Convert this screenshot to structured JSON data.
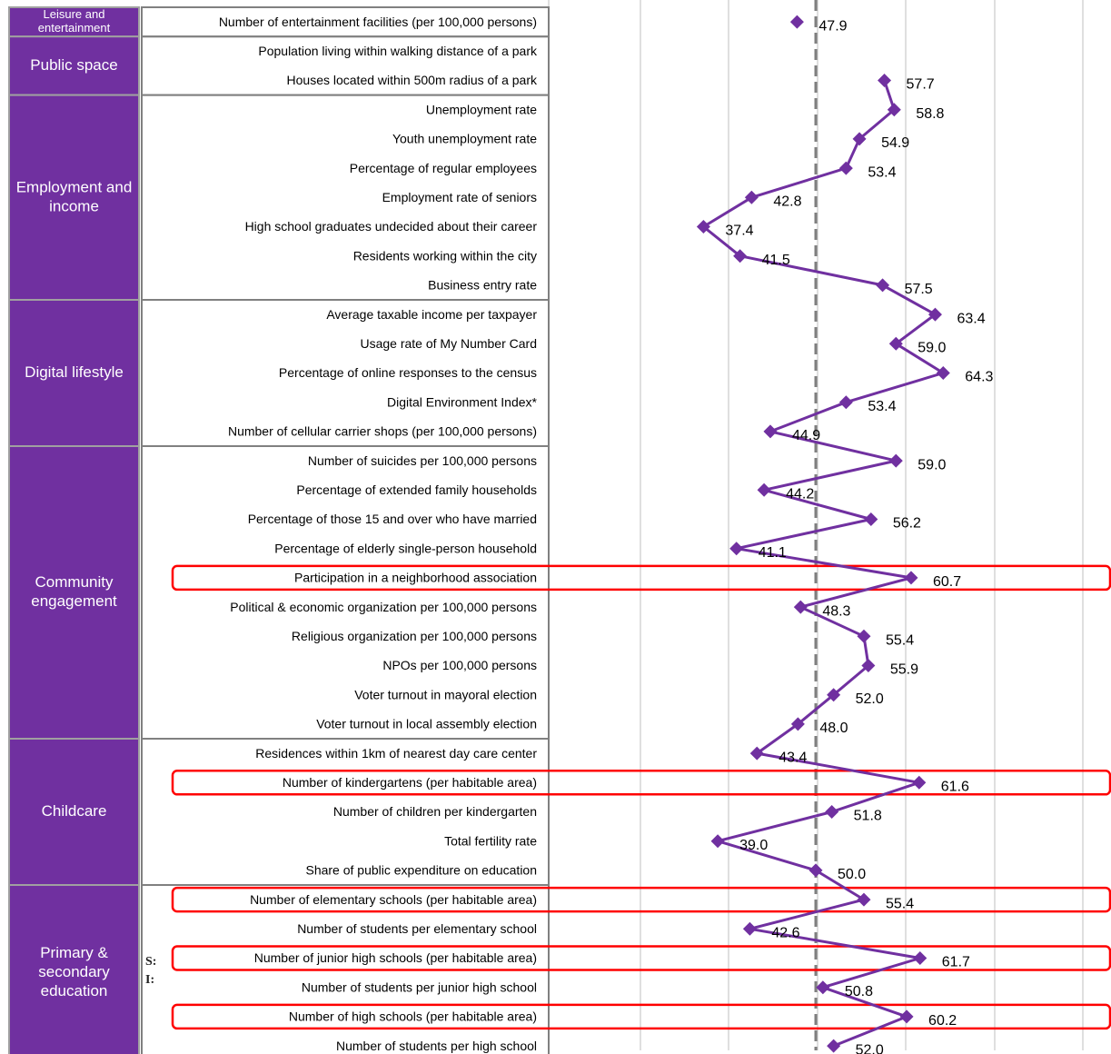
{
  "chart_data": {
    "type": "line",
    "orientation": "horizontal",
    "colors": {
      "category_fill": "#7030a0",
      "series": "#7030a0",
      "highlight": "#ff0000",
      "average_line": "#7f7f7f",
      "grid": "#bfbfbf"
    },
    "average_value": 50,
    "xlim": [
      20,
      80
    ],
    "grid": true,
    "categories": [
      {
        "name": "Leisure and entertainment",
        "lines": [
          "Leisure and",
          "entertainment"
        ],
        "rows": 1,
        "font": "small"
      },
      {
        "name": "Public space",
        "lines": [
          "Public space"
        ],
        "rows": 2,
        "font": "normal"
      },
      {
        "name": "Employment and income",
        "lines": [
          "Employment and",
          "income"
        ],
        "rows": 7,
        "font": "normal"
      },
      {
        "name": "Digital lifestyle",
        "lines": [
          "Digital lifestyle"
        ],
        "rows": 5,
        "font": "normal"
      },
      {
        "name": "Community engagement",
        "lines": [
          "Community",
          "engagement"
        ],
        "rows": 10,
        "font": "normal"
      },
      {
        "name": "Childcare",
        "lines": [
          "Childcare"
        ],
        "rows": 5,
        "font": "normal"
      },
      {
        "name": "Primary & secondary education",
        "lines": [
          "Primary &",
          "secondary",
          "education"
        ],
        "rows": 6,
        "font": "normal"
      }
    ],
    "indicators": [
      {
        "label": "Number of entertainment facilities (per 100,000 persons)",
        "value": 47.9,
        "value_text": "47.9",
        "highlight": false,
        "connected": false
      },
      {
        "label": "Population living within walking distance of a park",
        "value": null,
        "value_text": "",
        "highlight": false,
        "connected": false
      },
      {
        "label": "Houses located within 500m radius of a park",
        "value": 57.7,
        "value_text": "57.7",
        "highlight": false,
        "connected": true
      },
      {
        "label": "Unemployment rate",
        "value": 58.8,
        "value_text": "58.8",
        "highlight": false,
        "connected": true
      },
      {
        "label": "Youth unemployment rate",
        "value": 54.9,
        "value_text": "54.9",
        "highlight": false,
        "connected": true
      },
      {
        "label": "Percentage of regular employees",
        "value": 53.4,
        "value_text": "53.4",
        "highlight": false,
        "connected": true
      },
      {
        "label": "Employment rate of seniors",
        "value": 42.8,
        "value_text": "42.8",
        "highlight": false,
        "connected": true
      },
      {
        "label": "High school graduates undecided about their career",
        "value": 37.4,
        "value_text": "37.4",
        "highlight": false,
        "connected": true
      },
      {
        "label": "Residents working within the city",
        "value": 41.5,
        "value_text": "41.5",
        "highlight": false,
        "connected": true
      },
      {
        "label": "Business entry rate",
        "value": 57.5,
        "value_text": "57.5",
        "highlight": false,
        "connected": true
      },
      {
        "label": "Average taxable income per taxpayer",
        "value": 63.4,
        "value_text": "63.4",
        "highlight": false,
        "connected": true
      },
      {
        "label": "Usage rate of My Number Card",
        "value": 59.0,
        "value_text": "59.0",
        "highlight": false,
        "connected": true
      },
      {
        "label": "Percentage of online responses to the census",
        "value": 64.3,
        "value_text": "64.3",
        "highlight": false,
        "connected": true
      },
      {
        "label": "Digital Environment Index*",
        "value": 53.4,
        "value_text": "53.4",
        "highlight": false,
        "connected": true
      },
      {
        "label": "Number of cellular carrier shops (per 100,000 persons)",
        "value": 44.9,
        "value_text": "44.9",
        "highlight": false,
        "connected": true
      },
      {
        "label": "Number of suicides per 100,000 persons",
        "value": 59.0,
        "value_text": "59.0",
        "highlight": false,
        "connected": true
      },
      {
        "label": "Percentage of extended family households",
        "value": 44.2,
        "value_text": "44.2",
        "highlight": false,
        "connected": true
      },
      {
        "label": "Percentage of those 15 and over who have married",
        "value": 56.2,
        "value_text": "56.2",
        "highlight": false,
        "connected": true
      },
      {
        "label": "Percentage of elderly single-person household",
        "value": 41.1,
        "value_text": "41.1",
        "highlight": false,
        "connected": true
      },
      {
        "label": "Participation in a neighborhood association",
        "value": 60.7,
        "value_text": "60.7",
        "highlight": true,
        "connected": true
      },
      {
        "label": "Political & economic organization per 100,000 persons",
        "value": 48.3,
        "value_text": "48.3",
        "highlight": false,
        "connected": true
      },
      {
        "label": "Religious organization per 100,000 persons",
        "value": 55.4,
        "value_text": "55.4",
        "highlight": false,
        "connected": true
      },
      {
        "label": "NPOs per 100,000 persons",
        "value": 55.9,
        "value_text": "55.9",
        "highlight": false,
        "connected": true
      },
      {
        "label": "Voter turnout in mayoral election",
        "value": 52.0,
        "value_text": "52.0",
        "highlight": false,
        "connected": true
      },
      {
        "label": "Voter turnout in local assembly election",
        "value": 48.0,
        "value_text": "48.0",
        "highlight": false,
        "connected": true
      },
      {
        "label": "Residences within 1km of nearest day care center",
        "value": 43.4,
        "value_text": "43.4",
        "highlight": false,
        "connected": true
      },
      {
        "label": "Number of kindergartens (per habitable area)",
        "value": 61.6,
        "value_text": "61.6",
        "highlight": true,
        "connected": true
      },
      {
        "label": "Number of children per kindergarten",
        "value": 51.8,
        "value_text": "51.8",
        "highlight": false,
        "connected": true
      },
      {
        "label": "Total fertility rate",
        "value": 39.0,
        "value_text": "39.0",
        "highlight": false,
        "connected": true
      },
      {
        "label": "Share of public expenditure on education",
        "value": 50.0,
        "value_text": "50.0",
        "highlight": false,
        "connected": true
      },
      {
        "label": "Number of elementary schools (per habitable area)",
        "value": 55.4,
        "value_text": "55.4",
        "highlight": true,
        "connected": true
      },
      {
        "label": "Number of students per elementary school",
        "value": 42.6,
        "value_text": "42.6",
        "highlight": false,
        "connected": true
      },
      {
        "label": "Number of junior high schools (per habitable area)",
        "value": 61.7,
        "value_text": "61.7",
        "highlight": true,
        "connected": true
      },
      {
        "label": "Number of students per junior high school",
        "value": 50.8,
        "value_text": "50.8",
        "highlight": false,
        "connected": true
      },
      {
        "label": "Number of high schools (per habitable area)",
        "value": 60.2,
        "value_text": "60.2",
        "highlight": true,
        "connected": true
      },
      {
        "label": "Number of students per high school",
        "value": 52.0,
        "value_text": "52.0",
        "highlight": false,
        "connected": true
      }
    ],
    "stray_text": [
      "S:",
      "I:"
    ]
  }
}
